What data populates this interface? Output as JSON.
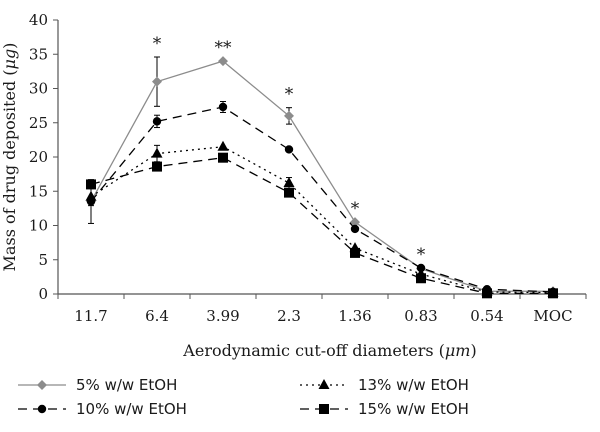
{
  "chart_data": {
    "type": "line",
    "categories": [
      "11.7",
      "6.4",
      "3.99",
      "2.3",
      "1.36",
      "0.83",
      "0.54",
      "MOC"
    ],
    "xlabel_prefix": "Aerodynamic cut-off diameters (",
    "xlabel_unit": "μm",
    "xlabel_suffix": ")",
    "ylabel_prefix": "Mass of drug deposited (",
    "ylabel_unit": "μg",
    "ylabel_suffix": ")",
    "ylim": [
      0,
      40
    ],
    "yticks": [
      "0",
      "5",
      "10",
      "15",
      "20",
      "25",
      "30",
      "35",
      "40"
    ],
    "grid": false,
    "legend_position": "bottom",
    "series": [
      {
        "name": "5% w/w EtOH",
        "values": [
          13.5,
          31.0,
          34.0,
          26.0,
          10.5,
          3.7,
          0.4,
          0.4
        ],
        "errors": [
          3.2,
          3.6,
          0,
          1.2,
          0,
          0,
          0,
          0
        ],
        "color": "#8c8c8c",
        "line": "solid",
        "marker": "diamond"
      },
      {
        "name": "10% w/w EtOH",
        "values": [
          13.5,
          25.2,
          27.3,
          21.1,
          9.5,
          3.8,
          0.7,
          0.3
        ],
        "errors": [
          0.6,
          0.9,
          0.8,
          0,
          0,
          0,
          0,
          0
        ],
        "color": "#000000",
        "line": "dashed",
        "marker": "circle"
      },
      {
        "name": "13% w/w EtOH",
        "values": [
          14.2,
          20.5,
          21.5,
          16.2,
          6.7,
          2.9,
          0.3,
          0.2
        ],
        "errors": [
          0,
          1.2,
          0,
          0.8,
          0,
          0,
          0,
          0
        ],
        "color": "#000000",
        "line": "dotted",
        "marker": "triangle"
      },
      {
        "name": "15% w/w EtOH",
        "values": [
          16.0,
          18.6,
          19.9,
          14.8,
          6.0,
          2.3,
          0.1,
          0.1
        ],
        "errors": [
          0,
          0,
          0,
          0,
          0,
          0,
          0,
          0
        ],
        "color": "#000000",
        "line": "dashed",
        "marker": "square"
      }
    ],
    "significance": [
      {
        "category": "6.4",
        "label": "*"
      },
      {
        "category": "3.99",
        "label": "**"
      },
      {
        "category": "2.3",
        "label": "*"
      },
      {
        "category": "1.36",
        "label": "*"
      },
      {
        "category": "0.83",
        "label": "*"
      }
    ]
  }
}
